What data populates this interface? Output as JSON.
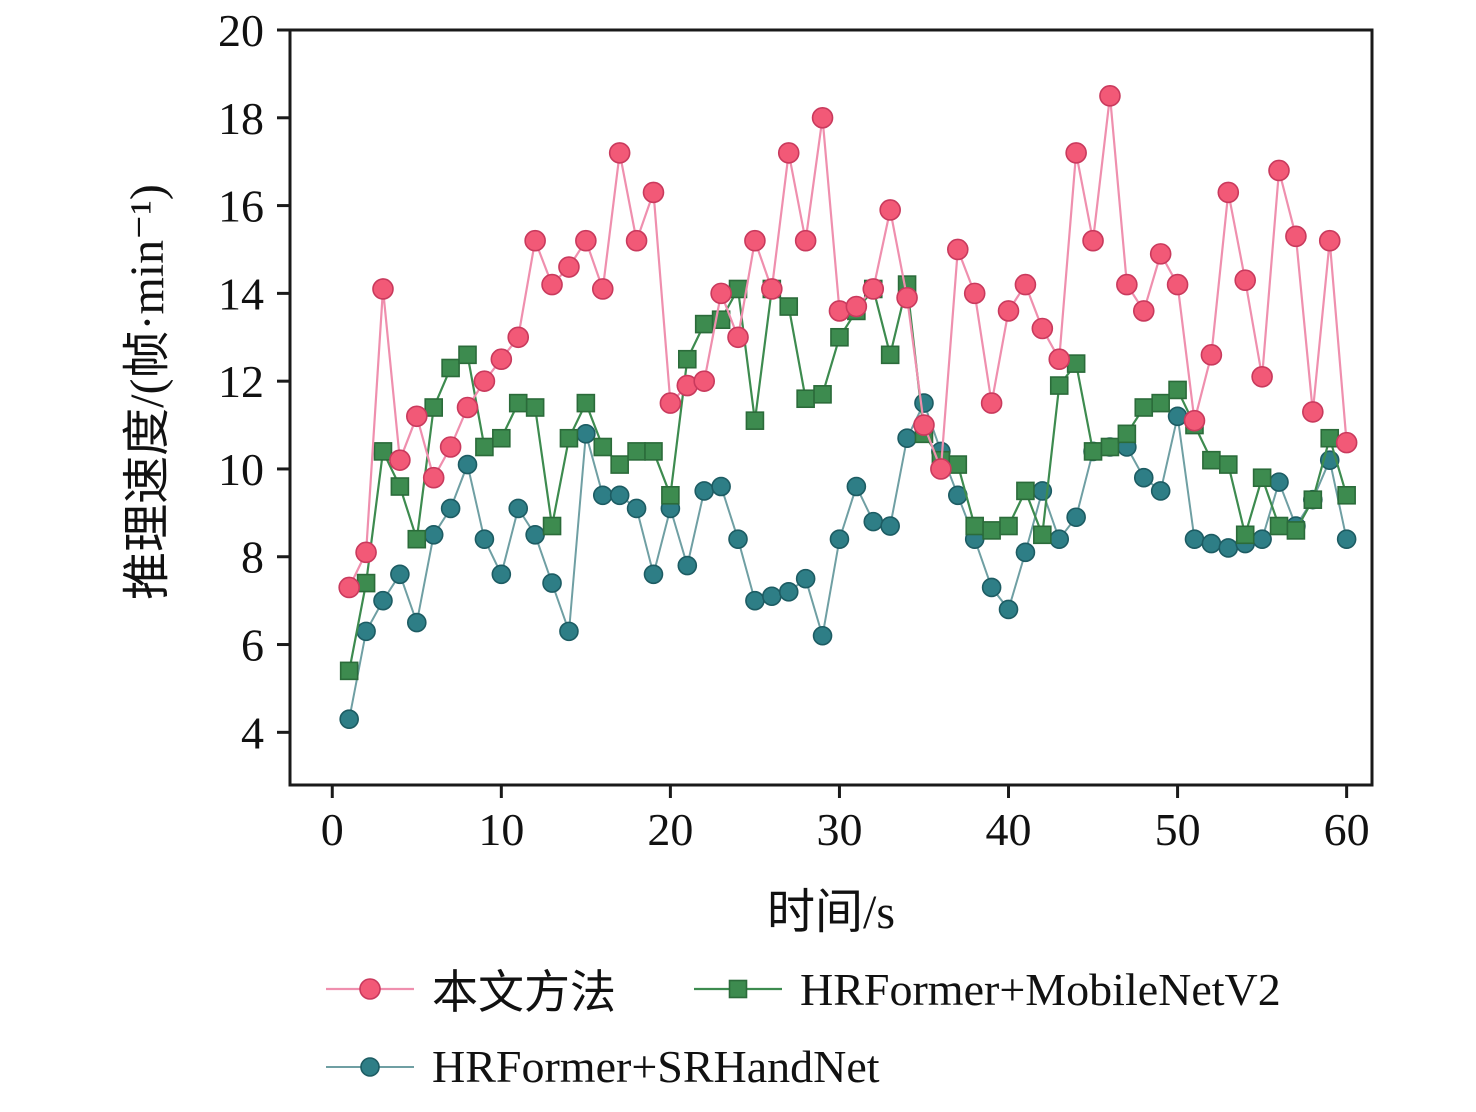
{
  "chart_data": {
    "type": "line",
    "title": "",
    "xlabel": "时间/s",
    "ylabel": "推理速度/(帧·min⁻¹)",
    "x_ticks": [
      0,
      10,
      20,
      30,
      40,
      50,
      60
    ],
    "y_ticks": [
      4,
      6,
      8,
      10,
      12,
      14,
      16,
      18,
      20
    ],
    "xlim": [
      -2.5,
      61.5
    ],
    "ylim": [
      2.8,
      20
    ],
    "grid": false,
    "legend_position": "below",
    "x": [
      1,
      2,
      3,
      4,
      5,
      6,
      7,
      8,
      9,
      10,
      11,
      12,
      13,
      14,
      15,
      16,
      17,
      18,
      19,
      20,
      21,
      22,
      23,
      24,
      25,
      26,
      27,
      28,
      29,
      30,
      31,
      32,
      33,
      34,
      35,
      36,
      37,
      38,
      39,
      40,
      41,
      42,
      43,
      44,
      45,
      46,
      47,
      48,
      49,
      50,
      51,
      52,
      53,
      54,
      55,
      56,
      57,
      58,
      59,
      60
    ],
    "series": [
      {
        "name": "本文方法",
        "marker": "circle",
        "size": 10,
        "color": "#f25977",
        "edge_color": "#c93a5d",
        "line_color": "#ef8fae",
        "line_width": 2.2,
        "values": [
          7.3,
          8.1,
          14.1,
          10.2,
          11.2,
          9.8,
          10.5,
          11.4,
          12.0,
          12.5,
          13.0,
          15.2,
          14.2,
          14.6,
          15.2,
          14.1,
          17.2,
          15.2,
          16.3,
          11.5,
          11.9,
          12.0,
          14.0,
          13.0,
          15.2,
          14.1,
          17.2,
          15.2,
          18.0,
          13.6,
          13.7,
          14.1,
          15.9,
          13.9,
          11.0,
          10.0,
          15.0,
          14.0,
          11.5,
          13.6,
          14.2,
          13.2,
          12.5,
          17.2,
          15.2,
          18.5,
          14.2,
          13.6,
          14.9,
          14.2,
          11.1,
          12.6,
          16.3,
          14.3,
          12.1,
          16.8,
          15.3,
          11.3,
          15.2,
          10.6
        ]
      },
      {
        "name": "HRFormer+MobileNetV2",
        "marker": "square",
        "size": 8.5,
        "color": "#3d8b4f",
        "edge_color": "#2b6b3a",
        "line_color": "#3d8b4f",
        "line_width": 2.2,
        "values": [
          5.4,
          7.4,
          10.4,
          9.6,
          8.4,
          11.4,
          12.3,
          12.6,
          10.5,
          10.7,
          11.5,
          11.4,
          8.7,
          10.7,
          11.5,
          10.5,
          10.1,
          10.4,
          10.4,
          9.4,
          12.5,
          13.3,
          13.4,
          14.1,
          11.1,
          14.1,
          13.7,
          11.6,
          11.7,
          13.0,
          13.6,
          14.1,
          12.6,
          14.2,
          10.8,
          10.2,
          10.1,
          8.7,
          8.6,
          8.7,
          9.5,
          8.5,
          11.9,
          12.4,
          10.4,
          10.5,
          10.8,
          11.4,
          11.5,
          11.8,
          11.0,
          10.2,
          10.1,
          8.5,
          9.8,
          8.7,
          8.6,
          9.3,
          10.7,
          9.4
        ]
      },
      {
        "name": "HRFormer+SRHandNet",
        "marker": "circle",
        "size": 9,
        "color": "#2e7e86",
        "edge_color": "#1d5c63",
        "line_color": "#6f9fa3",
        "line_width": 2.0,
        "values": [
          4.3,
          6.3,
          7.0,
          7.6,
          6.5,
          8.5,
          9.1,
          10.1,
          8.4,
          7.6,
          9.1,
          8.5,
          7.4,
          6.3,
          10.8,
          9.4,
          9.4,
          9.1,
          7.6,
          9.1,
          7.8,
          9.5,
          9.6,
          8.4,
          7.0,
          7.1,
          7.2,
          7.5,
          6.2,
          8.4,
          9.6,
          8.8,
          8.7,
          10.7,
          11.5,
          10.4,
          9.4,
          8.4,
          7.3,
          6.8,
          8.1,
          9.5,
          8.4,
          8.9,
          10.4,
          10.5,
          10.5,
          9.8,
          9.5,
          11.2,
          8.4,
          8.3,
          8.2,
          8.3,
          8.4,
          9.7,
          8.7,
          9.3,
          10.2,
          8.4
        ]
      }
    ]
  }
}
